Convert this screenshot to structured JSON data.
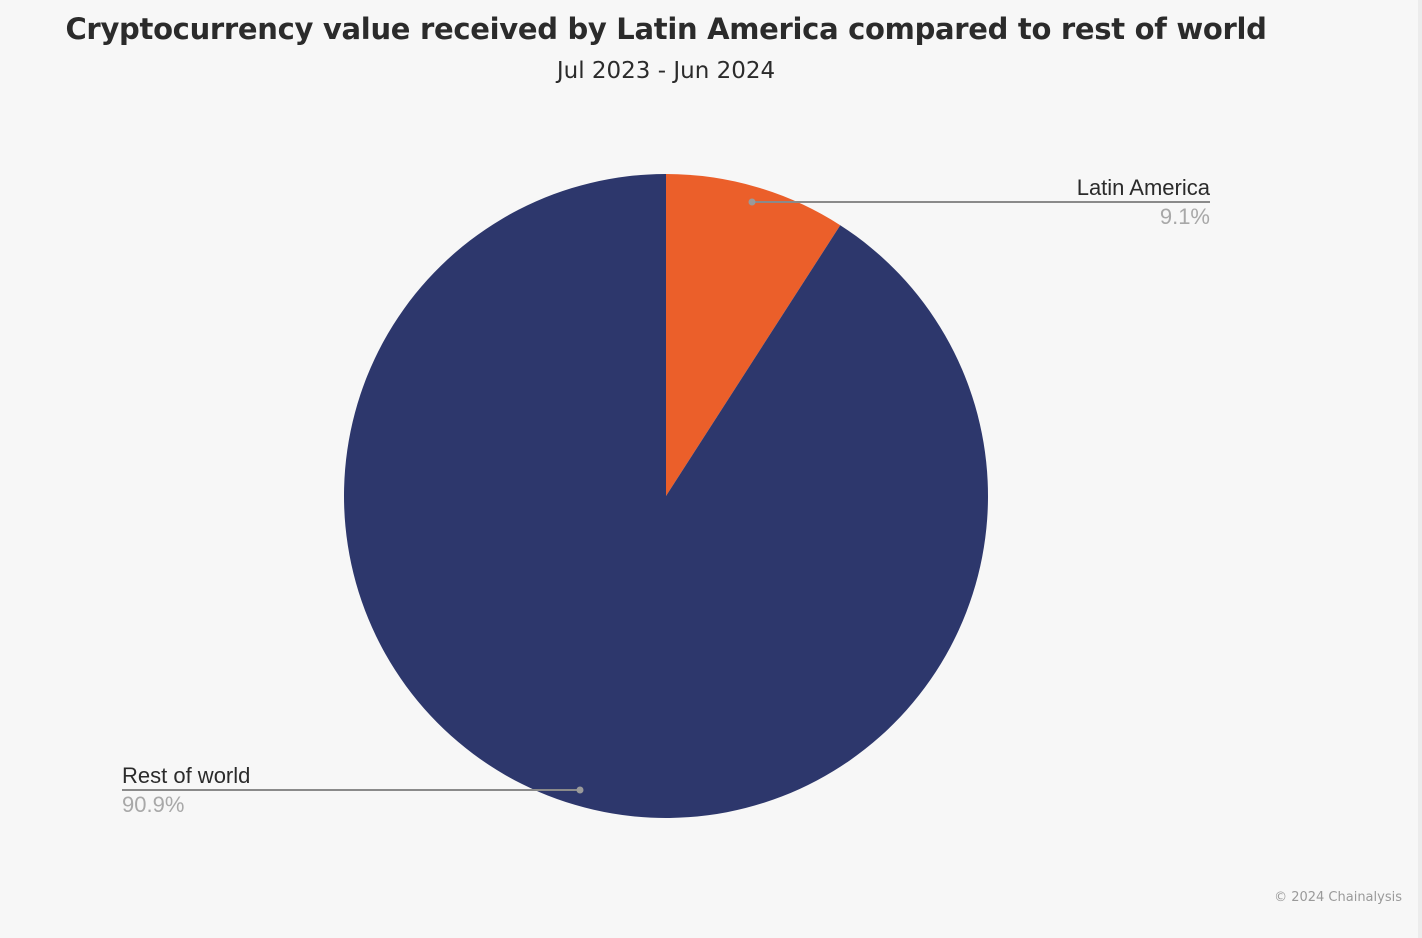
{
  "chart_data": {
    "type": "pie",
    "title": "Cryptocurrency value received by Latin America compared to rest of world",
    "subtitle": "Jul 2023 - Jun 2024",
    "slices": [
      {
        "label": "Latin America",
        "value": 9.1,
        "value_label": "9.1%",
        "color": "#eb5f2a"
      },
      {
        "label": "Rest of world",
        "value": 90.9,
        "value_label": "90.9%",
        "color": "#2d376c"
      }
    ],
    "start_angle": "top",
    "direction": "clockwise"
  },
  "credit": "© 2024 Chainalysis"
}
